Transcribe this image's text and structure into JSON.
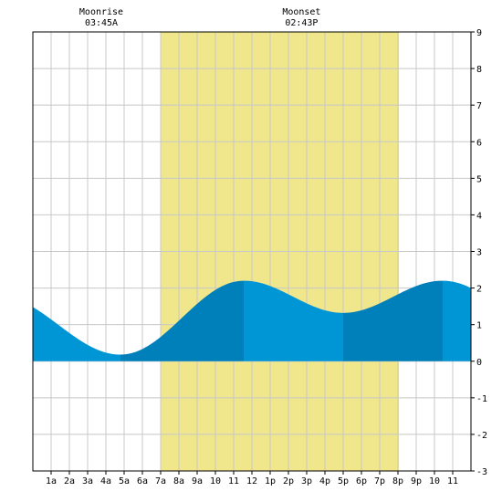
{
  "chart_data": {
    "type": "area",
    "x_unit": "hour of day",
    "xlim": [
      0,
      24
    ],
    "ylim": [
      -3,
      9
    ],
    "y_ticks": [
      -3,
      -2,
      -1,
      0,
      1,
      2,
      3,
      4,
      5,
      6,
      7,
      8,
      9
    ],
    "y_tick_labels": [
      "-3",
      "-2",
      "-1",
      "0",
      "1",
      "2",
      "3",
      "4",
      "5",
      "6",
      "7",
      "8",
      "9"
    ],
    "x_ticks": [
      1,
      2,
      3,
      4,
      5,
      6,
      7,
      8,
      9,
      10,
      11,
      12,
      13,
      14,
      15,
      16,
      17,
      18,
      19,
      20,
      21,
      22,
      23
    ],
    "x_tick_labels": [
      "1a",
      "2a",
      "3a",
      "4a",
      "5a",
      "6a",
      "7a",
      "8a",
      "9a",
      "10",
      "11",
      "12",
      "1p",
      "2p",
      "3p",
      "4p",
      "5p",
      "6p",
      "7p",
      "8p",
      "9p",
      "10",
      "11"
    ],
    "grid": true,
    "daylight": {
      "start": 7.0,
      "end": 20.05
    },
    "moonrise": {
      "label": "Moonrise",
      "time": "03:45A",
      "hour": 3.75
    },
    "moonset": {
      "label": "Moonset",
      "time": "02:43P",
      "hour": 14.72
    },
    "tide_extremes": [
      {
        "hour": 4.8,
        "height": 0.18,
        "kind": "low"
      },
      {
        "hour": 11.55,
        "height": 2.2,
        "kind": "high"
      },
      {
        "hour": 17.0,
        "height": 1.32,
        "kind": "low"
      },
      {
        "hour": 22.45,
        "height": 2.2,
        "kind": "high"
      }
    ],
    "start_height": 1.48,
    "end_height": 2.0,
    "colors": {
      "daylight": "#f0e68c",
      "tide_light": "#0096d6",
      "tide_dark": "#0080bb",
      "grid": "#c8c8c8",
      "axis": "#000000"
    }
  }
}
